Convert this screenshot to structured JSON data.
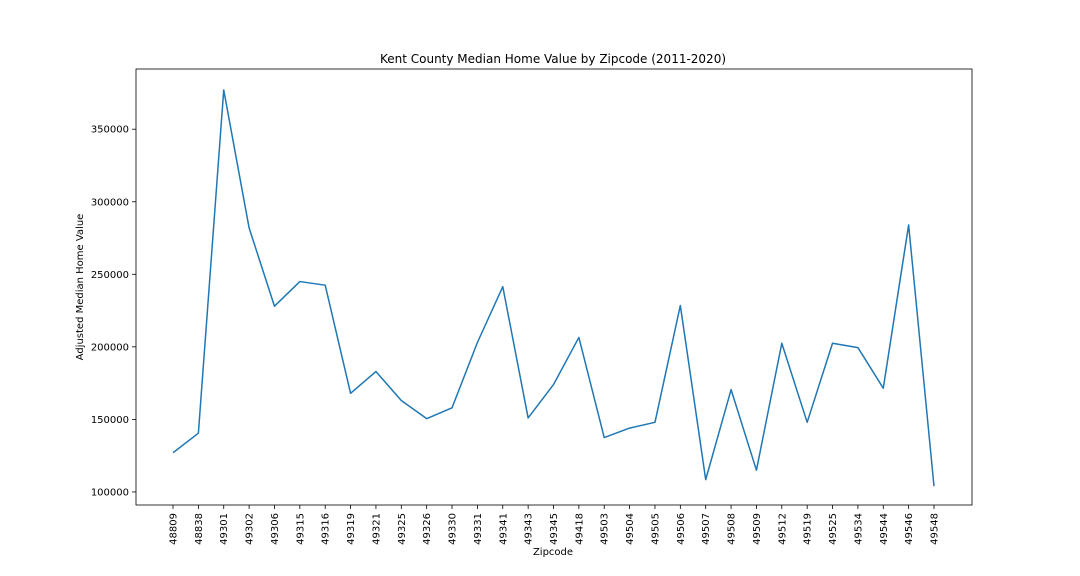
{
  "chart_data": {
    "type": "line",
    "title": "Kent County Median Home Value by Zipcode (2011-2020)",
    "xlabel": "Zipcode",
    "ylabel": "Adjusted Median Home Value",
    "categories": [
      "48809",
      "48838",
      "49301",
      "49302",
      "49306",
      "49315",
      "49316",
      "49319",
      "49321",
      "49325",
      "49326",
      "49330",
      "49331",
      "49341",
      "49343",
      "49345",
      "49418",
      "49503",
      "49504",
      "49505",
      "49506",
      "49507",
      "49508",
      "49509",
      "49512",
      "49519",
      "49525",
      "49534",
      "49544",
      "49546",
      "49548"
    ],
    "values": [
      127000,
      140500,
      377000,
      282000,
      228000,
      245000,
      242500,
      168000,
      183000,
      163000,
      150500,
      158000,
      203000,
      241500,
      151000,
      174000,
      206500,
      137500,
      144000,
      148000,
      228500,
      108500,
      170500,
      115000,
      202500,
      148000,
      202500,
      199500,
      171500,
      284000,
      104000
    ],
    "y_ticks": [
      "100000",
      "150000",
      "200000",
      "250000",
      "300000",
      "350000"
    ],
    "y_tick_values": [
      100000,
      150000,
      200000,
      250000,
      300000,
      350000
    ],
    "ylim": [
      91000,
      391500
    ],
    "grid": false,
    "line_color": "#1f77b4"
  }
}
